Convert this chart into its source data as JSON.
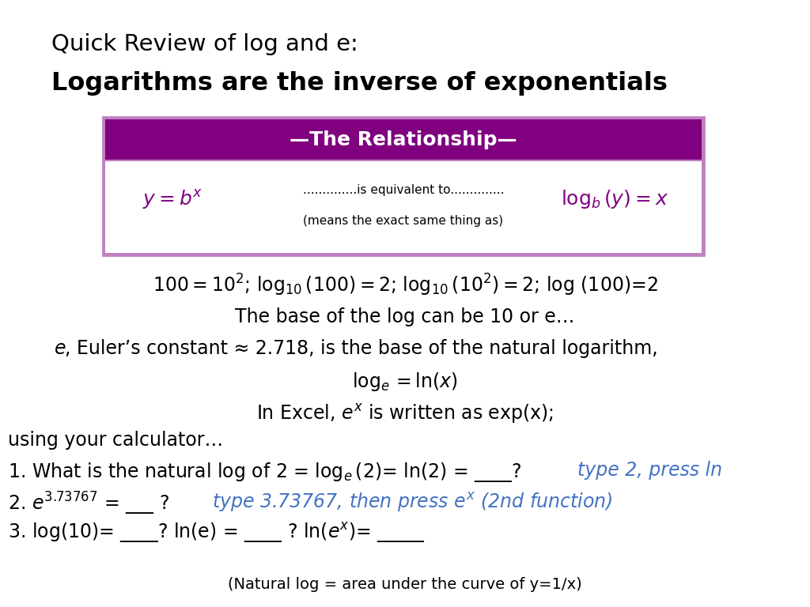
{
  "title_line1": "Quick Review of log and e:",
  "title_line2": "Logarithms are the inverse of exponentials",
  "box_header": "—The Relationship—",
  "box_header_bg": "#800080",
  "box_border_color": "#9B30C0",
  "box_bg_color": "#ffffff",
  "box_text_left": "$y = b^{x}$",
  "box_text_mid1": "..............is equivalent to..............",
  "box_text_mid2": "(means the exact same thing as)",
  "box_text_right": "$\\log_{b}(y) = x$",
  "box_text_color": "#800080",
  "line1": "$100 = 10^{2}$; $\\log_{10}(100)=2$; $\\log_{10}(10^{2})=2$; log (100)=2",
  "line2": "The base of the log can be 10 or e…",
  "line3_rest": ", Euler’s constant ≈ 2.718, is the base of the natural logarithm,",
  "line4": "$\\log_{e}=\\ln(x)$",
  "line5": "In Excel, $e^{x}$ is written as exp(x);",
  "line6": "using your calculator…",
  "q1a": "1. What is the natural log of 2 = $\\log_{e}(2)$= ln(2) = ____? ",
  "q1b": "type 2, press ln",
  "q2d": "type 3.73767, then press $e^{x}$ (2nd function)",
  "q3": "3. log(10)= ____? ln(e) = ____ ? ln($e^{x}$)= _____",
  "footer": "(Natural log = area under the curve of y=1/x)",
  "blue_color": "#4472C4",
  "black_color": "#000000",
  "bg_color": "#ffffff"
}
